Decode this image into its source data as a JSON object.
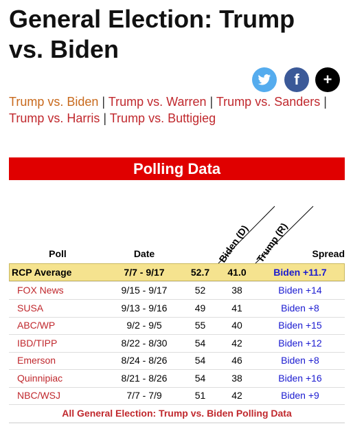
{
  "header": {
    "title": "General Election: Trump vs. Biden",
    "share_buttons": [
      "f",
      "+"
    ]
  },
  "links": {
    "items": [
      "Trump vs. Biden",
      "Trump vs. Warren",
      "Trump vs. Sanders",
      "Trump vs. Harris",
      "Trump vs. Buttigieg"
    ],
    "separator": "|"
  },
  "section_title": "Polling Data",
  "table": {
    "columns": [
      "Poll",
      "Date",
      "Biden (D)",
      "Trump (R)",
      "Spread"
    ],
    "average": [
      "RCP Average",
      "7/7 - 9/17",
      "52.7",
      "41.0",
      "Biden +11.7"
    ],
    "rows": [
      [
        "FOX News",
        "9/15 - 9/17",
        "52",
        "38",
        "Biden +14"
      ],
      [
        "SUSA",
        "9/13 - 9/16",
        "49",
        "41",
        "Biden +8"
      ],
      [
        "ABC/WP",
        "9/2 - 9/5",
        "55",
        "40",
        "Biden +15"
      ],
      [
        "IBD/TIPP",
        "8/22 - 8/30",
        "54",
        "42",
        "Biden +12"
      ],
      [
        "Emerson",
        "8/24 - 8/26",
        "54",
        "46",
        "Biden +8"
      ],
      [
        "Quinnipiac",
        "8/21 - 8/26",
        "54",
        "38",
        "Biden +16"
      ],
      [
        "NBC/WSJ",
        "7/7 - 7/9",
        "51",
        "42",
        "Biden +9"
      ]
    ],
    "footer_link": "All General Election: Trump vs. Biden Polling Data"
  }
}
